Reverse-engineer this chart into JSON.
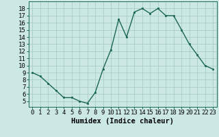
{
  "x": [
    0,
    1,
    2,
    3,
    4,
    5,
    6,
    7,
    8,
    9,
    10,
    11,
    12,
    13,
    14,
    15,
    16,
    17,
    18,
    19,
    20,
    21,
    22,
    23
  ],
  "y": [
    9.0,
    8.5,
    7.5,
    6.5,
    5.5,
    5.5,
    5.0,
    4.7,
    6.2,
    9.5,
    12.2,
    16.5,
    14.0,
    17.5,
    18.0,
    17.3,
    18.0,
    17.0,
    17.0,
    15.0,
    13.0,
    11.5,
    10.0,
    9.5
  ],
  "xlabel": "Humidex (Indice chaleur)",
  "bg_color": "#cce8e4",
  "line_color": "#1a6655",
  "marker_color": "#1a6655",
  "grid_color": "#aaccc8",
  "xlim": [
    -0.5,
    23.5
  ],
  "ylim": [
    4.2,
    19.0
  ],
  "yticks": [
    5,
    6,
    7,
    8,
    9,
    10,
    11,
    12,
    13,
    14,
    15,
    16,
    17,
    18
  ],
  "xtick_labels": [
    "0",
    "1",
    "2",
    "3",
    "4",
    "5",
    "6",
    "7",
    "8",
    "9",
    "10",
    "11",
    "12",
    "13",
    "14",
    "15",
    "16",
    "17",
    "18",
    "19",
    "20",
    "21",
    "22",
    "23"
  ],
  "label_fontsize": 7.5,
  "tick_fontsize": 6.5
}
